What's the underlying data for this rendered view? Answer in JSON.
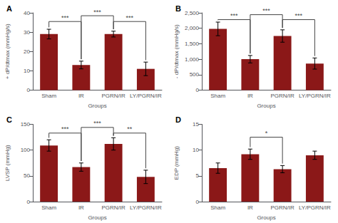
{
  "chart_data": [
    {
      "type": "bar",
      "title": "A",
      "ylabel": "+ dP/dtmax (mmHg/s)",
      "xlabel": "Groups",
      "categories": [
        "Sham",
        "IR",
        "PGRN/IR",
        "LY/PGRN/IR"
      ],
      "values": [
        29.0,
        13.0,
        29.0,
        11.0
      ],
      "errors": [
        2.5,
        2.0,
        1.5,
        3.5
      ],
      "color": "#8B1818",
      "ylim": [
        0,
        40
      ],
      "yticks": [
        0,
        10,
        20,
        30,
        40
      ],
      "grid": false,
      "annotations": [
        {
          "label": "***",
          "from": "Sham",
          "to": "IR",
          "height": 35.5
        },
        {
          "label": "***",
          "from": "PGRN/IR",
          "to": "LY/PGRN/IR",
          "height": 35.5
        },
        {
          "label": "***",
          "from": "IR",
          "to": "PGRN/IR",
          "height": 38.5
        }
      ]
    },
    {
      "type": "bar",
      "title": "B",
      "ylabel": "- dP/dtmax (mmHg/s)",
      "xlabel": "Groups",
      "categories": [
        "Sham",
        "IR",
        "PGRN/IR",
        "LY/PGRN/IR"
      ],
      "values": [
        1980,
        1000,
        1750,
        860
      ],
      "errors": [
        220,
        120,
        200,
        180
      ],
      "color": "#8B1818",
      "ylim": [
        0,
        2500
      ],
      "yticks": [
        0,
        500,
        1000,
        1500,
        2000,
        2500
      ],
      "grid": false,
      "annotations": [
        {
          "label": "***",
          "from": "Sham",
          "to": "IR",
          "height": 2280
        },
        {
          "label": "***",
          "from": "PGRN/IR",
          "to": "LY/PGRN/IR",
          "height": 2280
        },
        {
          "label": "***",
          "from": "IR",
          "to": "PGRN/IR",
          "height": 2440
        }
      ]
    },
    {
      "type": "bar",
      "title": "C",
      "ylabel": "LVSP (mmHg)",
      "xlabel": "Groups",
      "categories": [
        "Sham",
        "IR",
        "PGRN/IR",
        "LY/PGRN/IR"
      ],
      "values": [
        109,
        67,
        112,
        48
      ],
      "errors": [
        11,
        8,
        12,
        13
      ],
      "color": "#8B1818",
      "ylim": [
        0,
        150
      ],
      "yticks": [
        0,
        50,
        100,
        150
      ],
      "grid": false,
      "annotations": [
        {
          "label": "***",
          "from": "Sham",
          "to": "IR",
          "height": 133
        },
        {
          "label": "**",
          "from": "PGRN/IR",
          "to": "LY/PGRN/IR",
          "height": 133
        },
        {
          "label": "***",
          "from": "IR",
          "to": "PGRN/IR",
          "height": 144
        }
      ]
    },
    {
      "type": "bar",
      "title": "D",
      "ylabel": "EDP (mmHg)",
      "xlabel": "Groups",
      "categories": [
        "Sham",
        "IR",
        "PGRN/IR",
        "LY/PGRN/IR"
      ],
      "values": [
        6.5,
        9.2,
        6.3,
        9.0
      ],
      "errors": [
        1.0,
        1.0,
        0.7,
        0.8
      ],
      "color": "#8B1818",
      "ylim": [
        0,
        15
      ],
      "yticks": [
        0,
        5,
        10,
        15
      ],
      "grid": false,
      "annotations": [
        {
          "label": "*",
          "from": "IR",
          "to": "PGRN/IR",
          "height": 12.5
        }
      ]
    }
  ]
}
